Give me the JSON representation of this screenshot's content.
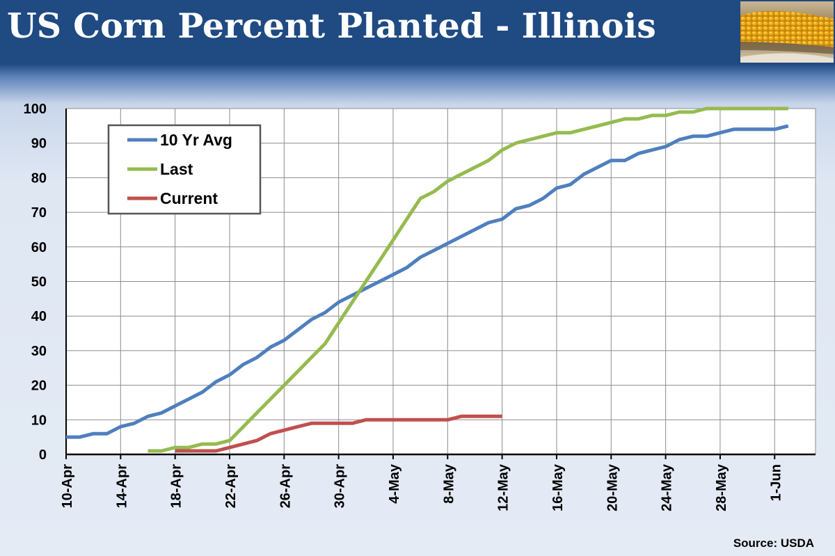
{
  "header": {
    "title": "US Corn Percent Planted - Illinois",
    "image": "corn-cob-photo"
  },
  "footer": {
    "source": "Source: USDA"
  },
  "colors": {
    "header_bg": "#1f4a82",
    "series_10yr": "#4f7fbe",
    "series_last": "#95bb4f",
    "series_current": "#c0504d"
  },
  "chart_data": {
    "type": "line",
    "title": "US Corn Percent Planted - Illinois",
    "xlabel": "",
    "ylabel": "",
    "ylim": [
      0,
      100
    ],
    "y_ticks": [
      0,
      10,
      20,
      30,
      40,
      50,
      60,
      70,
      80,
      90,
      100
    ],
    "x_ticks": [
      "10-Apr",
      "14-Apr",
      "18-Apr",
      "22-Apr",
      "26-Apr",
      "30-Apr",
      "4-May",
      "8-May",
      "12-May",
      "16-May",
      "20-May",
      "24-May",
      "28-May",
      "1-Jun"
    ],
    "x_start": "10-Apr",
    "grid": true,
    "legend_position": "top-left",
    "series": [
      {
        "name": "10 Yr Avg",
        "color": "#4f7fbe",
        "dates": [
          "10-Apr",
          "11-Apr",
          "12-Apr",
          "13-Apr",
          "14-Apr",
          "15-Apr",
          "16-Apr",
          "17-Apr",
          "18-Apr",
          "19-Apr",
          "20-Apr",
          "21-Apr",
          "22-Apr",
          "23-Apr",
          "24-Apr",
          "25-Apr",
          "26-Apr",
          "27-Apr",
          "28-Apr",
          "29-Apr",
          "30-Apr",
          "1-May",
          "2-May",
          "3-May",
          "4-May",
          "5-May",
          "6-May",
          "7-May",
          "8-May",
          "9-May",
          "10-May",
          "11-May",
          "12-May",
          "13-May",
          "14-May",
          "15-May",
          "16-May",
          "17-May",
          "18-May",
          "19-May",
          "20-May",
          "21-May",
          "22-May",
          "23-May",
          "24-May",
          "25-May",
          "26-May",
          "27-May",
          "28-May",
          "29-May",
          "30-May",
          "31-May",
          "1-Jun",
          "2-Jun"
        ],
        "values": [
          5,
          5,
          6,
          6,
          8,
          9,
          11,
          12,
          14,
          16,
          18,
          21,
          23,
          26,
          28,
          31,
          33,
          36,
          39,
          41,
          44,
          46,
          48,
          50,
          52,
          54,
          57,
          59,
          61,
          63,
          65,
          67,
          68,
          71,
          72,
          74,
          77,
          78,
          81,
          83,
          85,
          85,
          87,
          88,
          89,
          91,
          92,
          92,
          93,
          94,
          94,
          94,
          94,
          95
        ]
      },
      {
        "name": "Last",
        "color": "#95bb4f",
        "dates": [
          "16-Apr",
          "17-Apr",
          "18-Apr",
          "19-Apr",
          "20-Apr",
          "21-Apr",
          "22-Apr",
          "23-Apr",
          "24-Apr",
          "25-Apr",
          "26-Apr",
          "27-Apr",
          "28-Apr",
          "29-Apr",
          "30-Apr",
          "1-May",
          "2-May",
          "3-May",
          "4-May",
          "5-May",
          "6-May",
          "7-May",
          "8-May",
          "9-May",
          "10-May",
          "11-May",
          "12-May",
          "13-May",
          "14-May",
          "15-May",
          "16-May",
          "17-May",
          "18-May",
          "19-May",
          "20-May",
          "21-May",
          "22-May",
          "23-May",
          "24-May",
          "25-May",
          "26-May",
          "27-May",
          "28-May",
          "29-May",
          "30-May",
          "31-May",
          "1-Jun",
          "2-Jun"
        ],
        "values": [
          1,
          1,
          2,
          2,
          3,
          3,
          4,
          8,
          12,
          16,
          20,
          24,
          28,
          32,
          38,
          44,
          50,
          56,
          62,
          68,
          74,
          76,
          79,
          81,
          83,
          85,
          88,
          90,
          91,
          92,
          93,
          93,
          94,
          95,
          96,
          97,
          97,
          98,
          98,
          99,
          99,
          100,
          100,
          100,
          100,
          100,
          100,
          100
        ]
      },
      {
        "name": "Current",
        "color": "#c0504d",
        "dates": [
          "18-Apr",
          "19-Apr",
          "20-Apr",
          "21-Apr",
          "22-Apr",
          "23-Apr",
          "24-Apr",
          "25-Apr",
          "26-Apr",
          "27-Apr",
          "28-Apr",
          "29-Apr",
          "30-Apr",
          "1-May",
          "2-May",
          "3-May",
          "4-May",
          "5-May",
          "6-May",
          "7-May",
          "8-May",
          "9-May",
          "10-May",
          "11-May",
          "12-May"
        ],
        "values": [
          1,
          1,
          1,
          1,
          2,
          3,
          4,
          6,
          7,
          8,
          9,
          9,
          9,
          9,
          10,
          10,
          10,
          10,
          10,
          10,
          10,
          11,
          11,
          11,
          11
        ]
      }
    ]
  }
}
